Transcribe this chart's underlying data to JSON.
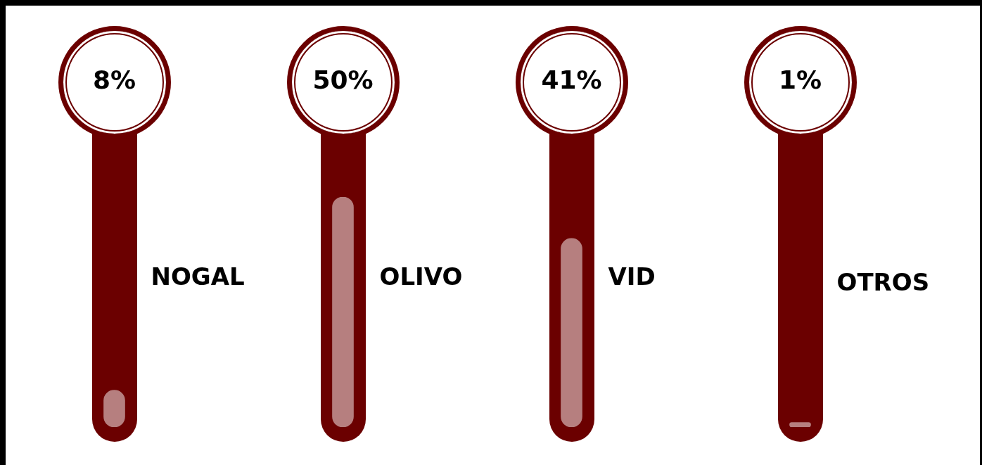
{
  "chart_data": {
    "type": "bar",
    "categories": [
      "NOGAL",
      "OLIVO",
      "VID",
      "OTROS"
    ],
    "values": [
      8,
      50,
      41,
      1
    ],
    "value_labels": [
      "8%",
      "50%",
      "41%",
      "1%"
    ],
    "color": "#b67f7f"
  }
}
